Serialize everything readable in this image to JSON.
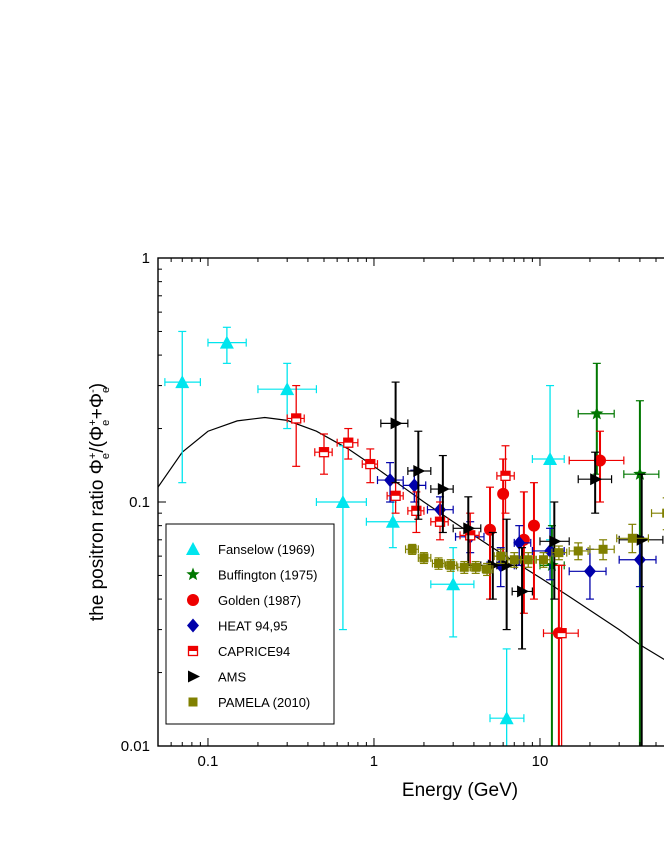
{
  "chart_data": {
    "type": "scatter",
    "title": "",
    "xlabel": "Energy (GeV)",
    "ylabel": {
      "prefix": "the positron ratio Φ",
      "sub1": "e",
      "sup1": "+",
      "mid": "/(Φ",
      "sub2": "e",
      "sup2": "+",
      "mid2": "+Φ",
      "sub3": "e",
      "sup3": "-",
      "end": ")"
    },
    "x_scale": "log",
    "y_scale": "log",
    "xlim": [
      0.05,
      60
    ],
    "ylim": [
      0.01,
      1
    ],
    "x_ticks": [
      {
        "value": 0.1,
        "label": "0.1"
      },
      {
        "value": 1,
        "label": "1"
      },
      {
        "value": 10,
        "label": "10"
      }
    ],
    "y_ticks": [
      {
        "value": 0.01,
        "label": "0.01"
      },
      {
        "value": 0.1,
        "label": "0.1"
      },
      {
        "value": 1,
        "label": "1"
      }
    ],
    "grid": false,
    "legend_position": "bottom-left",
    "series": [
      {
        "name": "Fanselow (1969)",
        "marker": "triangle-up",
        "color": "#00e5ee",
        "points": [
          {
            "x": 0.07,
            "y": 0.31,
            "xlo": 0.055,
            "xhi": 0.09,
            "ylo": 0.12,
            "yhi": 0.5
          },
          {
            "x": 0.13,
            "y": 0.45,
            "xlo": 0.1,
            "xhi": 0.17,
            "ylo": 0.37,
            "yhi": 0.52
          },
          {
            "x": 0.3,
            "y": 0.29,
            "xlo": 0.2,
            "xhi": 0.45,
            "ylo": 0.2,
            "yhi": 0.37
          },
          {
            "x": 0.65,
            "y": 0.1,
            "xlo": 0.45,
            "xhi": 0.9,
            "ylo": 0.03,
            "yhi": 0.17
          },
          {
            "x": 1.3,
            "y": 0.083,
            "xlo": 0.9,
            "xhi": 1.8,
            "ylo": 0.065,
            "yhi": 0.1
          },
          {
            "x": 3.0,
            "y": 0.046,
            "xlo": 2.2,
            "xhi": 4.0,
            "ylo": 0.028,
            "yhi": 0.065
          },
          {
            "x": 6.3,
            "y": 0.013,
            "xlo": 5.0,
            "xhi": 8.0,
            "ylo": 0.006,
            "yhi": 0.025
          },
          {
            "x": 11.5,
            "y": 0.15,
            "xlo": 9.0,
            "xhi": 14.0,
            "ylo": 0.07,
            "yhi": 0.3
          }
        ]
      },
      {
        "name": "Buffington (1975)",
        "marker": "star",
        "color": "#007700",
        "points": [
          {
            "x": 11.8,
            "y": 0.055,
            "xlo": 10.0,
            "xhi": 14.0,
            "ylo": 0.005,
            "yhi": 0.08
          },
          {
            "x": 22.0,
            "y": 0.23,
            "xlo": 17.0,
            "xhi": 28.0,
            "ylo": 0.13,
            "yhi": 0.37
          },
          {
            "x": 40.0,
            "y": 0.13,
            "xlo": 32.0,
            "xhi": 52.0,
            "ylo": 0.005,
            "yhi": 0.26
          }
        ]
      },
      {
        "name": "Golden (1987)",
        "marker": "circle",
        "color": "#ee0000",
        "points": [
          {
            "x": 5.0,
            "y": 0.077,
            "ylo": 0.04,
            "yhi": 0.115
          },
          {
            "x": 6.0,
            "y": 0.108,
            "ylo": 0.06,
            "yhi": 0.15
          },
          {
            "x": 8.0,
            "y": 0.07,
            "ylo": 0.035,
            "yhi": 0.11
          },
          {
            "x": 9.2,
            "y": 0.08,
            "ylo": 0.04,
            "yhi": 0.12
          },
          {
            "x": 13.0,
            "y": 0.029,
            "ylo": 0.005,
            "yhi": 0.055
          },
          {
            "x": 23.0,
            "y": 0.148,
            "xlo": 15.0,
            "xhi": 32.0,
            "ylo": 0.1,
            "yhi": 0.195
          }
        ]
      },
      {
        "name": "HEAT 94,95",
        "marker": "diamond",
        "color": "#0000aa",
        "points": [
          {
            "x": 1.25,
            "y": 0.123,
            "xlo": 1.05,
            "xhi": 1.5,
            "ylo": 0.1,
            "yhi": 0.145
          },
          {
            "x": 1.75,
            "y": 0.117,
            "xlo": 1.5,
            "xhi": 2.05,
            "ylo": 0.1,
            "yhi": 0.135
          },
          {
            "x": 2.5,
            "y": 0.093,
            "xlo": 2.1,
            "xhi": 3.0,
            "ylo": 0.08,
            "yhi": 0.105
          },
          {
            "x": 3.8,
            "y": 0.072,
            "xlo": 3.1,
            "xhi": 4.6,
            "ylo": 0.062,
            "yhi": 0.083
          },
          {
            "x": 5.8,
            "y": 0.055,
            "xlo": 4.8,
            "xhi": 7.0,
            "ylo": 0.045,
            "yhi": 0.065
          },
          {
            "x": 7.5,
            "y": 0.068,
            "xlo": 7.0,
            "xhi": 8.8,
            "ylo": 0.055,
            "yhi": 0.08
          },
          {
            "x": 11.5,
            "y": 0.063,
            "xlo": 9.0,
            "xhi": 14.0,
            "ylo": 0.048,
            "yhi": 0.078
          },
          {
            "x": 20.0,
            "y": 0.052,
            "xlo": 15.0,
            "xhi": 25.0,
            "ylo": 0.04,
            "yhi": 0.064
          },
          {
            "x": 40.0,
            "y": 0.058,
            "xlo": 30.0,
            "xhi": 50.0,
            "ylo": 0.045,
            "yhi": 0.072
          }
        ]
      },
      {
        "name": "CAPRICE94",
        "marker": "half-square",
        "color": "#ee0000",
        "points": [
          {
            "x": 0.34,
            "y": 0.22,
            "xlo": 0.3,
            "xhi": 0.38,
            "ylo": 0.14,
            "yhi": 0.3
          },
          {
            "x": 0.5,
            "y": 0.16,
            "xlo": 0.44,
            "xhi": 0.56,
            "ylo": 0.13,
            "yhi": 0.19
          },
          {
            "x": 0.7,
            "y": 0.175,
            "xlo": 0.6,
            "xhi": 0.8,
            "ylo": 0.15,
            "yhi": 0.2
          },
          {
            "x": 0.95,
            "y": 0.143,
            "xlo": 0.85,
            "xhi": 1.05,
            "ylo": 0.12,
            "yhi": 0.165
          },
          {
            "x": 1.35,
            "y": 0.106,
            "xlo": 1.2,
            "xhi": 1.5,
            "ylo": 0.09,
            "yhi": 0.12
          },
          {
            "x": 1.8,
            "y": 0.092,
            "xlo": 1.6,
            "xhi": 2.0,
            "ylo": 0.075,
            "yhi": 0.11
          },
          {
            "x": 2.5,
            "y": 0.083,
            "xlo": 2.2,
            "xhi": 2.8,
            "ylo": 0.07,
            "yhi": 0.1
          },
          {
            "x": 3.8,
            "y": 0.073,
            "xlo": 3.3,
            "xhi": 4.3,
            "ylo": 0.055,
            "yhi": 0.09
          },
          {
            "x": 6.2,
            "y": 0.128,
            "xlo": 5.5,
            "xhi": 7.0,
            "ylo": 0.09,
            "yhi": 0.17
          },
          {
            "x": 13.5,
            "y": 0.029,
            "xlo": 10.5,
            "xhi": 17.0,
            "ylo": 0.005,
            "yhi": 0.055
          }
        ]
      },
      {
        "name": "AMS",
        "marker": "triangle-right",
        "color": "#000000",
        "points": [
          {
            "x": 1.35,
            "y": 0.21,
            "xlo": 1.1,
            "xhi": 1.6,
            "ylo": 0.12,
            "yhi": 0.31
          },
          {
            "x": 1.85,
            "y": 0.134,
            "xlo": 1.6,
            "xhi": 2.2,
            "ylo": 0.085,
            "yhi": 0.195
          },
          {
            "x": 2.6,
            "y": 0.113,
            "xlo": 2.2,
            "xhi": 3.0,
            "ylo": 0.075,
            "yhi": 0.155
          },
          {
            "x": 3.7,
            "y": 0.078,
            "xlo": 3.0,
            "xhi": 4.4,
            "ylo": 0.055,
            "yhi": 0.105
          },
          {
            "x": 5.2,
            "y": 0.055,
            "xlo": 4.4,
            "xhi": 6.0,
            "ylo": 0.04,
            "yhi": 0.075
          },
          {
            "x": 6.3,
            "y": 0.055,
            "xlo": 5.5,
            "xhi": 7.2,
            "ylo": 0.03,
            "yhi": 0.085
          },
          {
            "x": 7.8,
            "y": 0.043,
            "xlo": 6.8,
            "xhi": 9.0,
            "ylo": 0.025,
            "yhi": 0.065
          },
          {
            "x": 12.2,
            "y": 0.069,
            "xlo": 10.0,
            "xhi": 15.0,
            "ylo": 0.04,
            "yhi": 0.1
          },
          {
            "x": 21.5,
            "y": 0.124,
            "xlo": 17.0,
            "xhi": 27.0,
            "ylo": 0.09,
            "yhi": 0.16
          },
          {
            "x": 41.0,
            "y": 0.07,
            "xlo": 30.0,
            "xhi": 55.0,
            "ylo": 0.006,
            "yhi": 0.13
          }
        ]
      },
      {
        "name": "PAMELA (2010)",
        "marker": "square",
        "color": "#808000",
        "points": [
          {
            "x": 1.7,
            "y": 0.064,
            "xlo": 1.55,
            "xhi": 1.85,
            "ylo": 0.061,
            "yhi": 0.067
          },
          {
            "x": 2.0,
            "y": 0.059,
            "xlo": 1.85,
            "xhi": 2.2,
            "ylo": 0.056,
            "yhi": 0.062
          },
          {
            "x": 2.45,
            "y": 0.056,
            "xlo": 2.25,
            "xhi": 2.65,
            "ylo": 0.053,
            "yhi": 0.059
          },
          {
            "x": 2.9,
            "y": 0.055,
            "xlo": 2.7,
            "xhi": 3.15,
            "ylo": 0.052,
            "yhi": 0.058
          },
          {
            "x": 3.5,
            "y": 0.054,
            "xlo": 3.2,
            "xhi": 3.8,
            "ylo": 0.051,
            "yhi": 0.057
          },
          {
            "x": 4.1,
            "y": 0.054,
            "xlo": 3.8,
            "xhi": 4.4,
            "ylo": 0.051,
            "yhi": 0.057
          },
          {
            "x": 4.8,
            "y": 0.053,
            "xlo": 4.5,
            "xhi": 5.2,
            "ylo": 0.05,
            "yhi": 0.056
          },
          {
            "x": 5.8,
            "y": 0.06,
            "xlo": 5.3,
            "xhi": 6.3,
            "ylo": 0.056,
            "yhi": 0.064
          },
          {
            "x": 7.0,
            "y": 0.058,
            "xlo": 6.4,
            "xhi": 7.6,
            "ylo": 0.054,
            "yhi": 0.062
          },
          {
            "x": 8.5,
            "y": 0.058,
            "xlo": 7.7,
            "xhi": 9.3,
            "ylo": 0.054,
            "yhi": 0.062
          },
          {
            "x": 10.5,
            "y": 0.058,
            "xlo": 9.5,
            "xhi": 11.5,
            "ylo": 0.054,
            "yhi": 0.062
          },
          {
            "x": 13.0,
            "y": 0.062,
            "xlo": 11.8,
            "xhi": 14.5,
            "ylo": 0.058,
            "yhi": 0.066
          },
          {
            "x": 17.0,
            "y": 0.063,
            "xlo": 15.0,
            "xhi": 19.5,
            "ylo": 0.058,
            "yhi": 0.068
          },
          {
            "x": 24.0,
            "y": 0.064,
            "xlo": 20.0,
            "xhi": 28.0,
            "ylo": 0.058,
            "yhi": 0.07
          },
          {
            "x": 36.0,
            "y": 0.071,
            "xlo": 29.0,
            "xhi": 45.0,
            "ylo": 0.062,
            "yhi": 0.081
          },
          {
            "x": 58.0,
            "y": 0.09,
            "xlo": 47.0,
            "xhi": 60.0,
            "ylo": 0.077,
            "yhi": 0.104
          }
        ]
      }
    ],
    "model_curve": {
      "color": "#000000",
      "points": [
        [
          0.05,
          0.115
        ],
        [
          0.07,
          0.16
        ],
        [
          0.1,
          0.195
        ],
        [
          0.15,
          0.215
        ],
        [
          0.22,
          0.222
        ],
        [
          0.3,
          0.216
        ],
        [
          0.45,
          0.195
        ],
        [
          0.7,
          0.165
        ],
        [
          1.0,
          0.14
        ],
        [
          1.5,
          0.115
        ],
        [
          2.0,
          0.1
        ],
        [
          3.0,
          0.083
        ],
        [
          4.0,
          0.073
        ],
        [
          5.0,
          0.066
        ],
        [
          7.0,
          0.057
        ],
        [
          10.0,
          0.049
        ],
        [
          15.0,
          0.041
        ],
        [
          20.0,
          0.036
        ],
        [
          30.0,
          0.03
        ],
        [
          40.0,
          0.026
        ],
        [
          60.0,
          0.022
        ]
      ]
    }
  }
}
